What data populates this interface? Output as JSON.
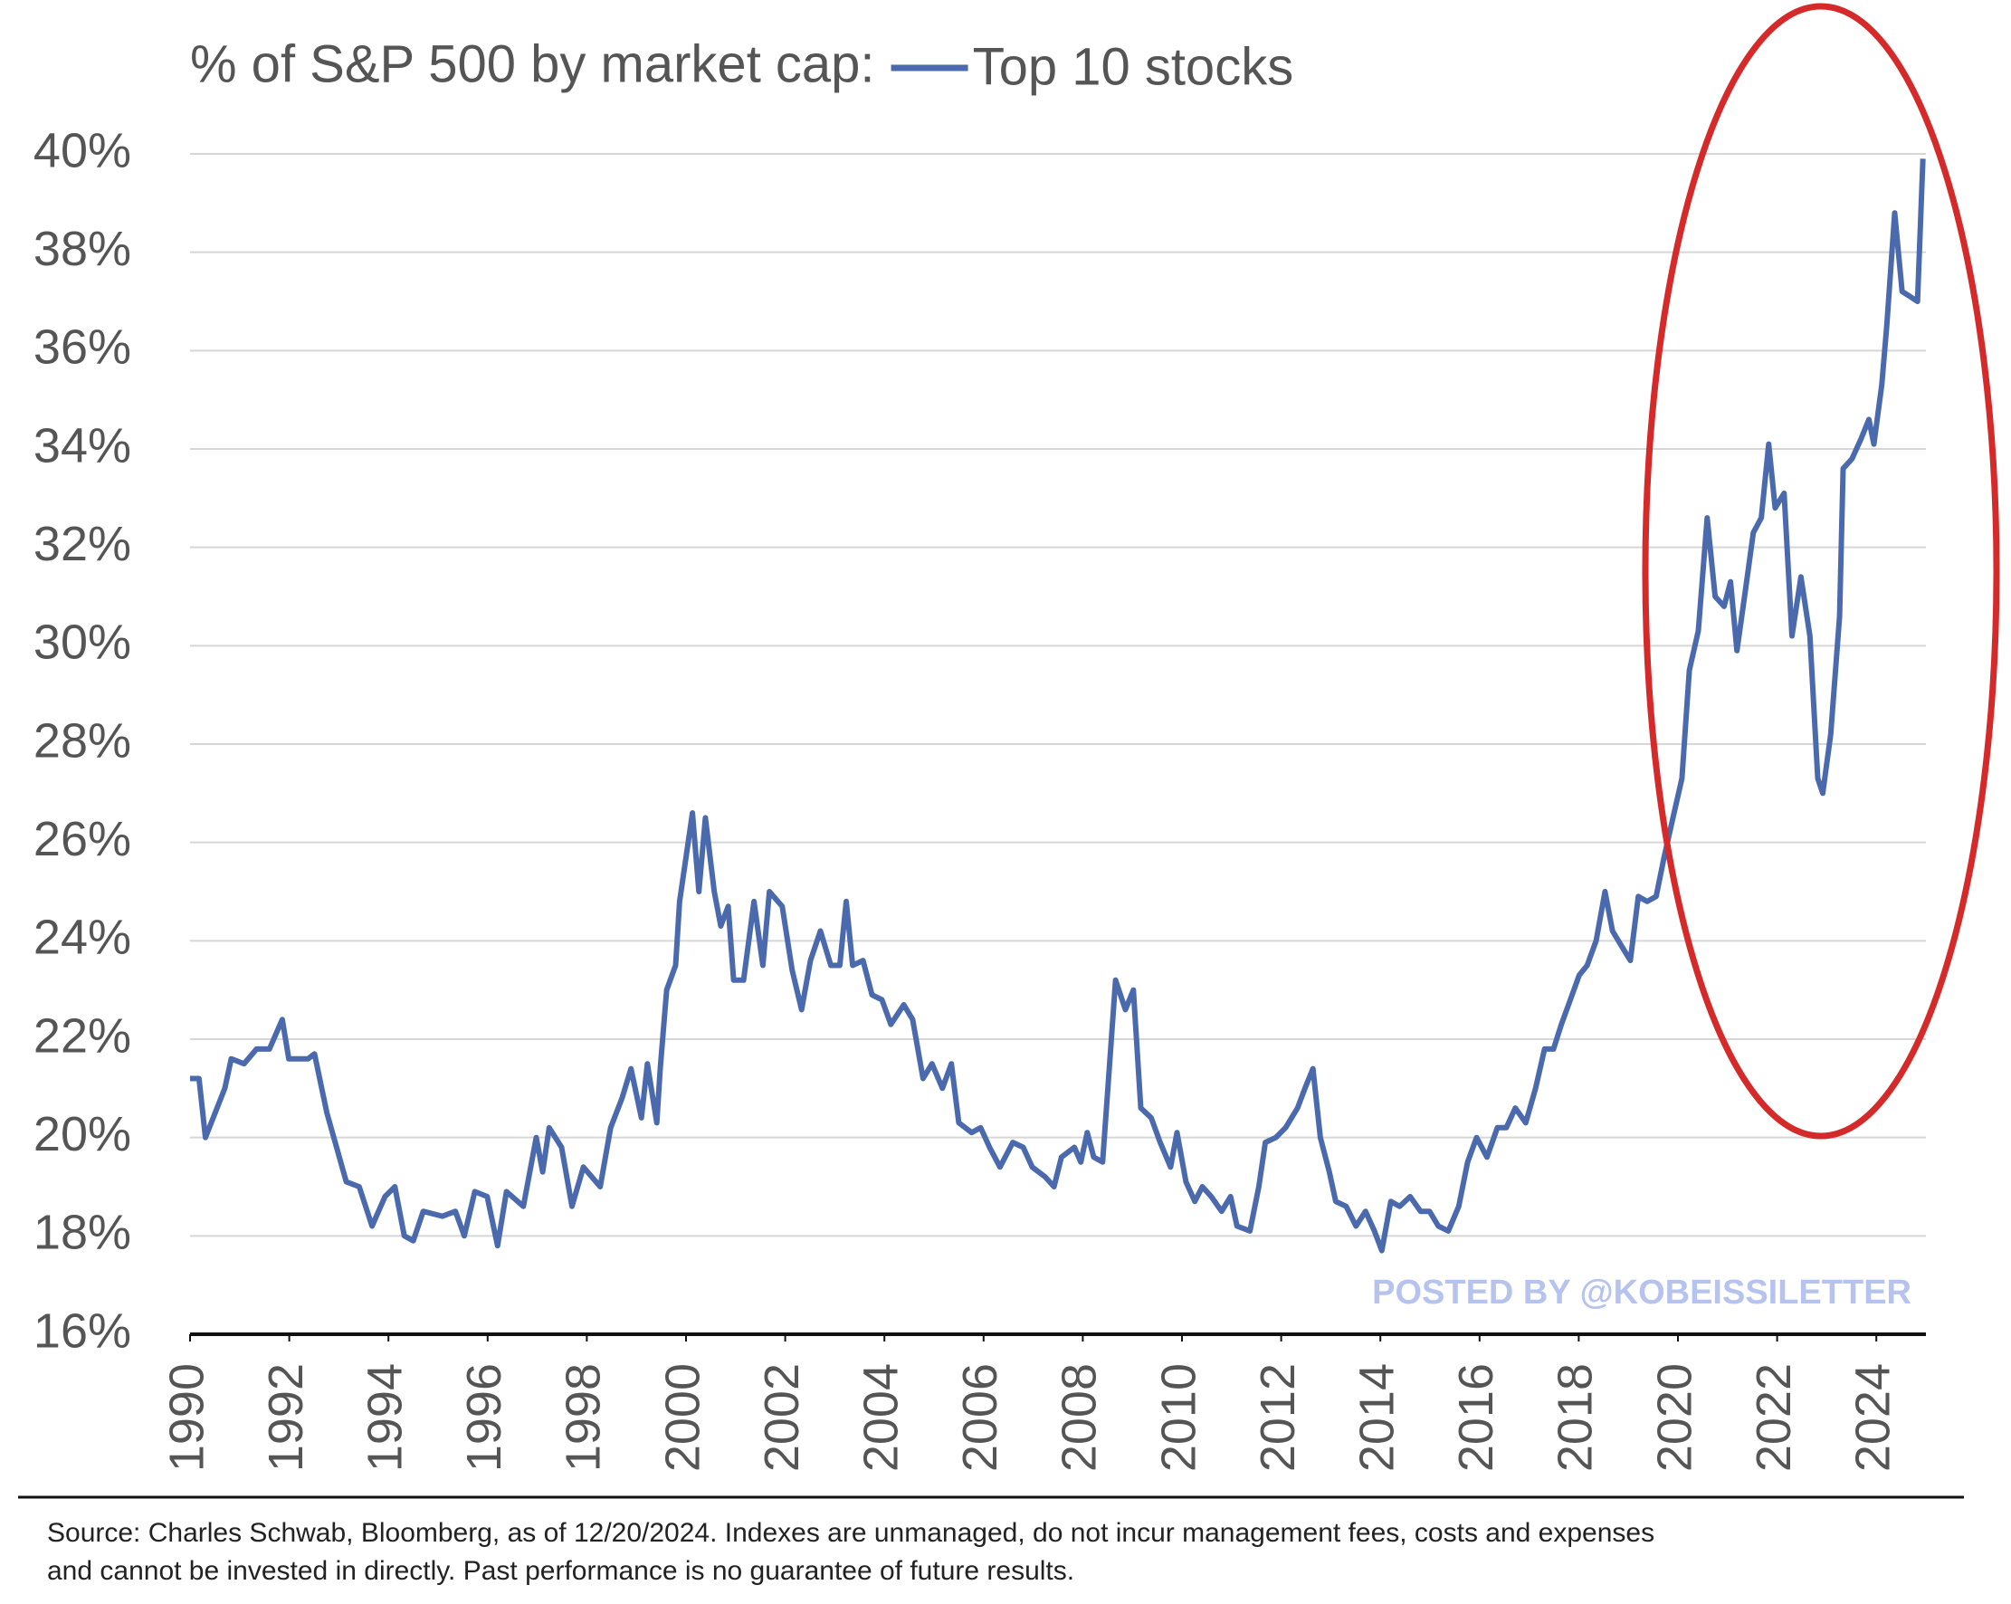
{
  "chart_data": {
    "type": "line",
    "title": "% of S&P 500 by market cap:",
    "x": [
      1990.0,
      1990.18,
      1990.31,
      1990.7,
      1990.83,
      1991.09,
      1991.34,
      1991.6,
      1991.86,
      1991.99,
      1992.38,
      1992.51,
      1992.76,
      1993.15,
      1993.41,
      1993.67,
      1993.93,
      1994.13,
      1994.32,
      1994.5,
      1994.7,
      1995.09,
      1995.35,
      1995.53,
      1995.74,
      1995.99,
      1996.2,
      1996.38,
      1996.72,
      1996.98,
      1997.11,
      1997.24,
      1997.49,
      1997.7,
      1997.93,
      1998.27,
      1998.48,
      1998.71,
      1998.89,
      1999.1,
      1999.22,
      1999.41,
      1999.48,
      1999.61,
      1999.79,
      1999.87,
      2000.13,
      2000.26,
      2000.39,
      2000.57,
      2000.7,
      2000.85,
      2000.96,
      2001.16,
      2001.37,
      2001.55,
      2001.68,
      2001.94,
      2002.14,
      2002.33,
      2002.51,
      2002.71,
      2002.92,
      2003.1,
      2003.23,
      2003.36,
      2003.57,
      2003.75,
      2003.95,
      2004.13,
      2004.39,
      2004.57,
      2004.78,
      2004.96,
      2005.17,
      2005.35,
      2005.5,
      2005.76,
      2005.94,
      2006.12,
      2006.33,
      2006.59,
      2006.8,
      2006.98,
      2007.24,
      2007.42,
      2007.57,
      2007.83,
      2007.96,
      2008.09,
      2008.22,
      2008.4,
      2008.66,
      2008.86,
      2009.02,
      2009.17,
      2009.38,
      2009.56,
      2009.77,
      2009.9,
      2010.08,
      2010.26,
      2010.41,
      2010.59,
      2010.8,
      2010.98,
      2011.11,
      2011.37,
      2011.55,
      2011.68,
      2011.89,
      2012.09,
      2012.33,
      2012.48,
      2012.64,
      2012.79,
      2012.97,
      2013.1,
      2013.31,
      2013.51,
      2013.7,
      2013.88,
      2014.03,
      2014.21,
      2014.39,
      2014.6,
      2014.81,
      2014.99,
      2015.17,
      2015.37,
      2015.58,
      2015.76,
      2015.94,
      2016.15,
      2016.36,
      2016.54,
      2016.72,
      2016.93,
      2017.13,
      2017.31,
      2017.49,
      2017.65,
      2017.83,
      2018.01,
      2018.17,
      2018.35,
      2018.53,
      2018.68,
      2018.86,
      2019.04,
      2019.2,
      2019.38,
      2019.56,
      2019.72,
      2019.9,
      2020.08,
      2020.23,
      2020.41,
      2020.59,
      2020.75,
      2020.93,
      2021.06,
      2021.19,
      2021.37,
      2021.52,
      2021.68,
      2021.83,
      2021.96,
      2022.14,
      2022.3,
      2022.48,
      2022.66,
      2022.82,
      2022.92,
      2023.08,
      2023.26,
      2023.33,
      2023.51,
      2023.69,
      2023.85,
      2023.95,
      2024.11,
      2024.21,
      2024.37,
      2024.52,
      2024.68,
      2024.83,
      2024.94
    ],
    "series": [
      {
        "name": "Top 10 stocks",
        "color": "#4a6aad",
        "values": [
          21.2,
          21.2,
          20.0,
          21.0,
          21.6,
          21.5,
          21.8,
          21.8,
          22.4,
          21.6,
          21.6,
          21.7,
          20.5,
          19.1,
          19.0,
          18.2,
          18.8,
          19.0,
          18.0,
          17.9,
          18.5,
          18.4,
          18.5,
          18.0,
          18.9,
          18.8,
          17.8,
          18.9,
          18.6,
          20.0,
          19.3,
          20.2,
          19.8,
          18.6,
          19.4,
          19.0,
          20.2,
          20.8,
          21.4,
          20.4,
          21.5,
          20.3,
          21.4,
          23.0,
          23.5,
          24.8,
          26.6,
          25.0,
          26.5,
          25.0,
          24.3,
          24.7,
          23.2,
          23.2,
          24.8,
          23.5,
          25.0,
          24.7,
          23.4,
          22.6,
          23.6,
          24.2,
          23.5,
          23.5,
          24.8,
          23.5,
          23.6,
          22.9,
          22.8,
          22.3,
          22.7,
          22.4,
          21.2,
          21.5,
          21.0,
          21.5,
          20.3,
          20.1,
          20.2,
          19.8,
          19.4,
          19.9,
          19.8,
          19.4,
          19.2,
          19.0,
          19.6,
          19.8,
          19.5,
          20.1,
          19.6,
          19.5,
          23.2,
          22.6,
          23.0,
          20.6,
          20.4,
          19.9,
          19.4,
          20.1,
          19.1,
          18.7,
          19.0,
          18.8,
          18.5,
          18.8,
          18.2,
          18.1,
          19.0,
          19.9,
          20.0,
          20.2,
          20.6,
          21.0,
          21.4,
          20.0,
          19.3,
          18.7,
          18.6,
          18.2,
          18.5,
          18.1,
          17.7,
          18.7,
          18.6,
          18.8,
          18.5,
          18.5,
          18.2,
          18.1,
          18.6,
          19.5,
          20.0,
          19.6,
          20.2,
          20.2,
          20.6,
          20.3,
          21.0,
          21.8,
          21.8,
          22.3,
          22.8,
          23.3,
          23.5,
          24.0,
          25.0,
          24.2,
          23.9,
          23.6,
          24.9,
          24.8,
          24.9,
          25.7,
          26.5,
          27.3,
          29.5,
          30.3,
          32.6,
          31.0,
          30.8,
          31.3,
          29.9,
          31.2,
          32.3,
          32.6,
          34.1,
          32.8,
          33.1,
          30.2,
          31.4,
          30.2,
          27.3,
          27.0,
          28.2,
          30.6,
          33.6,
          33.8,
          34.2,
          34.6,
          34.1,
          35.3,
          36.5,
          38.8,
          37.2,
          37.1,
          37.0,
          39.9
        ]
      }
    ],
    "xlim": [
      1990,
      2025
    ],
    "xticks": [
      1990,
      1992,
      1994,
      1996,
      1998,
      2000,
      2002,
      2004,
      2006,
      2008,
      2010,
      2012,
      2014,
      2016,
      2018,
      2020,
      2022,
      2024
    ],
    "ylim": [
      16,
      40
    ],
    "yticks": [
      {
        "value": 16,
        "label": "16%"
      },
      {
        "value": 18,
        "label": "18%"
      },
      {
        "value": 20,
        "label": "20%"
      },
      {
        "value": 22,
        "label": "22%"
      },
      {
        "value": 24,
        "label": "24%"
      },
      {
        "value": 26,
        "label": "26%"
      },
      {
        "value": 28,
        "label": "28%"
      },
      {
        "value": 30,
        "label": "30%"
      },
      {
        "value": 32,
        "label": "32%"
      },
      {
        "value": 34,
        "label": "34%"
      },
      {
        "value": 36,
        "label": "36%"
      },
      {
        "value": 38,
        "label": "38%"
      },
      {
        "value": 40,
        "label": "40%"
      }
    ],
    "grid": true,
    "watermark": "POSTED BY @KOBEISSILETTER",
    "source": [
      "Source: Charles Schwab, Bloomberg, as of 12/20/2024. Indexes are unmanaged, do not incur management fees, costs and expenses",
      "and cannot be invested in directly. Past performance is no guarantee of future results."
    ]
  }
}
